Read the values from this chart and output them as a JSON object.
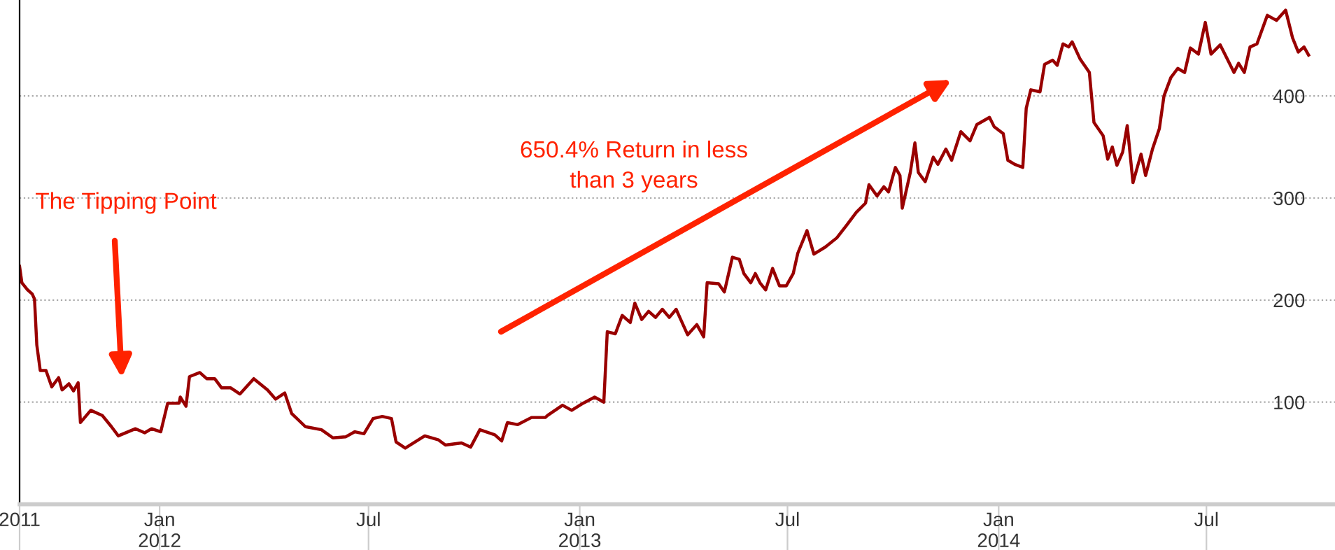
{
  "chart_data": {
    "type": "line",
    "x": [
      "2011-09-01",
      "2011-09-03",
      "2011-09-08",
      "2011-09-12",
      "2011-09-14",
      "2011-09-16",
      "2011-09-19",
      "2011-09-24",
      "2011-09-29",
      "2011-10-05",
      "2011-10-08",
      "2011-10-14",
      "2011-10-18",
      "2011-10-22",
      "2011-10-24",
      "2011-11-02",
      "2011-11-12",
      "2011-11-20",
      "2011-11-26",
      "2011-12-11",
      "2011-12-19",
      "2011-12-25",
      "2012-01-02",
      "2012-01-08",
      "2012-01-18",
      "2012-01-19",
      "2012-01-24",
      "2012-01-27",
      "2012-02-05",
      "2012-02-11",
      "2012-02-18",
      "2012-02-24",
      "2012-03-03",
      "2012-03-11",
      "2012-03-23",
      "2012-04-04",
      "2012-04-11",
      "2012-04-19",
      "2012-04-25",
      "2012-05-07",
      "2012-05-21",
      "2012-05-31",
      "2012-06-11",
      "2012-06-19",
      "2012-06-27",
      "2012-07-05",
      "2012-07-13",
      "2012-07-21",
      "2012-07-25",
      "2012-08-02",
      "2012-08-19",
      "2012-08-31",
      "2012-09-06",
      "2012-09-20",
      "2012-09-28",
      "2012-10-06",
      "2012-10-19",
      "2012-10-25",
      "2012-10-30",
      "2012-11-08",
      "2012-11-20",
      "2012-12-02",
      "2012-12-04",
      "2012-12-17",
      "2012-12-25",
      "2013-01-04",
      "2013-01-14",
      "2013-01-22",
      "2013-01-25",
      "2013-02-01",
      "2013-02-07",
      "2013-02-14",
      "2013-02-18",
      "2013-02-24",
      "2013-03-02",
      "2013-03-08",
      "2013-03-14",
      "2013-03-20",
      "2013-03-26",
      "2013-03-30",
      "2013-04-05",
      "2013-04-13",
      "2013-04-19",
      "2013-04-22",
      "2013-05-02",
      "2013-05-07",
      "2013-05-14",
      "2013-05-20",
      "2013-05-24",
      "2013-05-30",
      "2013-06-03",
      "2013-06-07",
      "2013-06-12",
      "2013-06-18",
      "2013-06-24",
      "2013-06-30",
      "2013-07-06",
      "2013-07-10",
      "2013-07-18",
      "2013-07-24",
      "2013-08-03",
      "2013-08-13",
      "2013-08-22",
      "2013-08-30",
      "2013-09-07",
      "2013-09-10",
      "2013-09-17",
      "2013-09-23",
      "2013-09-27",
      "2013-10-03",
      "2013-10-07",
      "2013-10-09",
      "2013-10-16",
      "2013-10-20",
      "2013-10-23",
      "2013-10-29",
      "2013-11-05",
      "2013-11-09",
      "2013-11-16",
      "2013-11-21",
      "2013-11-29",
      "2013-12-07",
      "2013-12-13",
      "2013-12-24",
      "2013-12-28",
      "2014-01-05",
      "2014-01-09",
      "2014-01-15",
      "2014-01-22",
      "2014-01-25",
      "2014-01-29",
      "2014-02-06",
      "2014-02-10",
      "2014-02-17",
      "2014-02-21",
      "2014-02-26",
      "2014-03-03",
      "2014-03-06",
      "2014-03-13",
      "2014-03-21",
      "2014-03-25",
      "2014-04-02",
      "2014-04-06",
      "2014-04-10",
      "2014-04-14",
      "2014-04-19",
      "2014-04-23",
      "2014-04-28",
      "2014-05-05",
      "2014-05-09",
      "2014-05-15",
      "2014-05-21",
      "2014-05-25",
      "2014-05-31",
      "2014-06-06",
      "2014-06-12",
      "2014-06-17",
      "2014-06-24",
      "2014-06-30",
      "2014-07-05",
      "2014-07-13",
      "2014-07-17",
      "2014-07-25",
      "2014-07-29",
      "2014-08-03",
      "2014-08-08",
      "2014-08-14",
      "2014-08-23",
      "2014-08-31",
      "2014-09-08",
      "2014-09-14",
      "2014-09-19",
      "2014-09-24",
      "2014-09-28"
    ],
    "series": [
      {
        "color": "#990000",
        "values": [
          233,
          217,
          210,
          206,
          201,
          156,
          131,
          131,
          115,
          124,
          112,
          118,
          111,
          119,
          80,
          92,
          87,
          76,
          67,
          74,
          70,
          74,
          71,
          99,
          99,
          105,
          96,
          125,
          129,
          123,
          123,
          114,
          114,
          108,
          123,
          112,
          103,
          109,
          89,
          76,
          73,
          65,
          66,
          71,
          69,
          84,
          86,
          84,
          61,
          55,
          67,
          63,
          58,
          60,
          56,
          73,
          68,
          62,
          80,
          78,
          85,
          85,
          87,
          97,
          92,
          99,
          105,
          100,
          169,
          167,
          185,
          178,
          197,
          181,
          189,
          183,
          191,
          183,
          191,
          181,
          166,
          176,
          164,
          217,
          216,
          208,
          242,
          240,
          226,
          217,
          226,
          217,
          210,
          231,
          214,
          214,
          226,
          246,
          268,
          245,
          252,
          261,
          274,
          286,
          295,
          313,
          302,
          311,
          306,
          330,
          322,
          290,
          325,
          354,
          325,
          316,
          340,
          333,
          348,
          337,
          365,
          356,
          372,
          379,
          370,
          363,
          337,
          333,
          330,
          388,
          406,
          404,
          431,
          435,
          430,
          451,
          448,
          453,
          436,
          423,
          374,
          361,
          338,
          350,
          332,
          345,
          371,
          315,
          343,
          322,
          348,
          368,
          400,
          418,
          427,
          423,
          447,
          441,
          472,
          441,
          450,
          441,
          423,
          432,
          423,
          448,
          451,
          479,
          474,
          484,
          457,
          443,
          448,
          440
        ]
      }
    ],
    "xlim": [
      "2011-09-01",
      "2014-10-21"
    ],
    "xticks": [
      {
        "value": "2011-09-01",
        "label": "2011"
      },
      {
        "value": "2012-01-01",
        "label": "Jan\n2012"
      },
      {
        "value": "2012-07-01",
        "label": "Jul"
      },
      {
        "value": "2013-01-01",
        "label": "Jan\n2013"
      },
      {
        "value": "2013-07-01",
        "label": "Jul"
      },
      {
        "value": "2014-01-01",
        "label": "Jan\n2014"
      },
      {
        "value": "2014-07-01",
        "label": "Jul"
      }
    ],
    "ylim": [
      0,
      494
    ],
    "yticks": [
      100,
      200,
      300,
      400
    ],
    "grid": "y",
    "legend": false,
    "annotations": [
      "The Tipping Point",
      "650.4% Return in less\nthan 3 years"
    ]
  }
}
